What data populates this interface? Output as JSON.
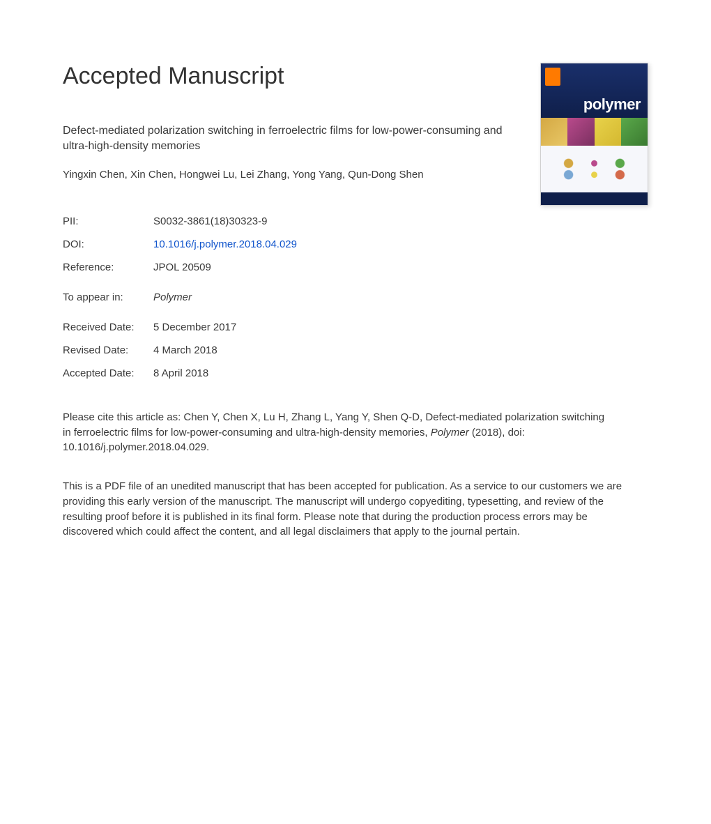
{
  "heading": "Accepted Manuscript",
  "article_title": "Defect-mediated polarization switching in ferroelectric films for low-power-consuming and ultra-high-density memories",
  "authors": "Yingxin Chen, Xin Chen, Hongwei Lu, Lei Zhang, Yong Yang, Qun-Dong Shen",
  "meta": {
    "pii_label": "PII:",
    "pii_value": "S0032-3861(18)30323-9",
    "doi_label": "DOI:",
    "doi_value": "10.1016/j.polymer.2018.04.029",
    "ref_label": "Reference:",
    "ref_value": "JPOL 20509",
    "appear_label": "To appear in:",
    "appear_value": "Polymer",
    "received_label": "Received Date:",
    "received_value": "5 December 2017",
    "revised_label": "Revised Date:",
    "revised_value": "4 March 2018",
    "accepted_label": "Accepted Date:",
    "accepted_value": "8 April 2018"
  },
  "citation_prefix": "Please cite this article as: Chen Y, Chen X, Lu H, Zhang L, Yang Y, Shen Q-D, Defect-mediated polarization switching in ferroelectric films for low-power-consuming and ultra-high-density memories, ",
  "citation_journal": "Polymer",
  "citation_suffix": " (2018), doi: 10.1016/j.polymer.2018.04.029.",
  "disclaimer": "This is a PDF file of an unedited manuscript that has been accepted for publication. As a service to our customers we are providing this early version of the manuscript. The manuscript will undergo copyediting, typesetting, and review of the resulting proof before it is published in its final form. Please note that during the production process errors may be discovered which could affect the content, and all legal disclaimers that apply to the journal pertain.",
  "cover": {
    "journal_name": "polymer"
  }
}
